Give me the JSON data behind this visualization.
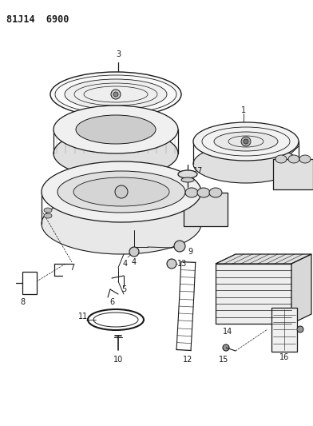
{
  "title": "81J14 6900",
  "bg_color": "#ffffff",
  "line_color": "#1a1a1a",
  "figsize": [
    3.92,
    5.33
  ],
  "dpi": 100
}
